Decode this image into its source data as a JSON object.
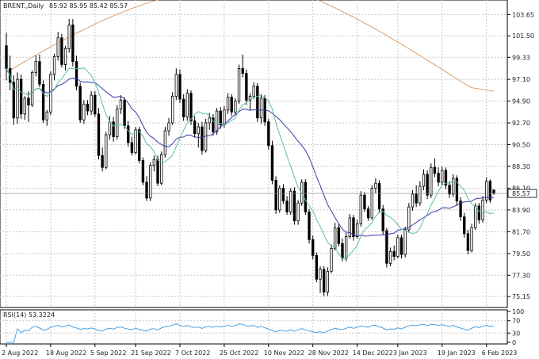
{
  "chart_data": {
    "type": "candlestick",
    "title": "BRENT.,Daily",
    "ohlc_label": "85.92 85.95 85.42 85.57",
    "last_price": "85.57",
    "y_ticks": [
      "103.65",
      "101.50",
      "99.33",
      "97.10",
      "94.90",
      "92.70",
      "90.50",
      "88.30",
      "86.10",
      "83.90",
      "81.70",
      "79.50",
      "77.30",
      "75.15"
    ],
    "x_ticks": [
      "2 Aug 2022",
      "18 Aug 2022",
      "5 Sep 2022",
      "21 Sep 2022",
      "7 Oct 2022",
      "25 Oct 2022",
      "10 Nov 2022",
      "28 Nov 2022",
      "14 Dec 2022",
      "3 Jan 2023",
      "19 Jan 2023",
      "6 Feb 2023"
    ],
    "ylim": [
      74.2,
      104.8
    ],
    "grid": true,
    "candles": [
      [
        100.5,
        101.8,
        97.0,
        98.2
      ],
      [
        98.2,
        99.5,
        96.0,
        96.8
      ],
      [
        96.8,
        97.5,
        92.5,
        93.2
      ],
      [
        93.2,
        97.8,
        92.6,
        97.1
      ],
      [
        97.1,
        97.6,
        93.1,
        93.6
      ],
      [
        93.6,
        95.4,
        93.0,
        95.2
      ],
      [
        95.2,
        95.9,
        92.8,
        94.5
      ],
      [
        94.5,
        98.0,
        94.3,
        97.8
      ],
      [
        97.8,
        99.5,
        97.4,
        98.9
      ],
      [
        98.9,
        99.6,
        96.3,
        96.6
      ],
      [
        96.6,
        97.0,
        92.7,
        93.0
      ],
      [
        93.0,
        94.0,
        92.4,
        93.8
      ],
      [
        93.8,
        97.9,
        93.5,
        97.6
      ],
      [
        97.6,
        99.7,
        97.0,
        99.4
      ],
      [
        99.4,
        101.9,
        99.0,
        101.3
      ],
      [
        101.3,
        101.7,
        98.3,
        98.6
      ],
      [
        98.6,
        100.5,
        98.0,
        100.2
      ],
      [
        100.2,
        103.2,
        99.8,
        102.6
      ],
      [
        102.6,
        103.2,
        98.4,
        98.9
      ],
      [
        98.9,
        99.5,
        96.0,
        96.4
      ],
      [
        96.4,
        96.8,
        92.7,
        93.0
      ],
      [
        93.0,
        95.0,
        92.6,
        94.6
      ],
      [
        94.6,
        95.0,
        93.5,
        93.9
      ],
      [
        93.9,
        95.9,
        93.5,
        95.5
      ],
      [
        95.5,
        95.9,
        93.3,
        93.6
      ],
      [
        93.6,
        94.2,
        89.0,
        89.4
      ],
      [
        89.4,
        90.2,
        87.8,
        88.2
      ],
      [
        88.2,
        91.8,
        88.0,
        91.5
      ],
      [
        91.5,
        93.4,
        91.0,
        92.8
      ],
      [
        92.8,
        93.3,
        90.8,
        91.3
      ],
      [
        91.3,
        94.5,
        91.0,
        94.1
      ],
      [
        94.1,
        95.5,
        93.6,
        95.0
      ],
      [
        95.0,
        95.3,
        92.1,
        92.4
      ],
      [
        92.4,
        92.9,
        90.3,
        90.7
      ],
      [
        90.7,
        91.3,
        89.4,
        89.7
      ],
      [
        89.7,
        92.3,
        89.5,
        92.0
      ],
      [
        92.0,
        92.3,
        88.6,
        88.9
      ],
      [
        88.9,
        89.2,
        86.4,
        86.7
      ],
      [
        86.7,
        87.3,
        84.8,
        85.1
      ],
      [
        85.1,
        88.7,
        84.8,
        88.4
      ],
      [
        88.4,
        89.4,
        87.8,
        89.0
      ],
      [
        89.0,
        89.4,
        86.3,
        86.6
      ],
      [
        86.6,
        89.8,
        86.4,
        89.5
      ],
      [
        89.5,
        92.3,
        89.2,
        91.9
      ],
      [
        91.9,
        93.2,
        91.4,
        92.7
      ],
      [
        92.7,
        95.8,
        92.5,
        95.4
      ],
      [
        95.4,
        98.2,
        95.0,
        97.6
      ],
      [
        97.6,
        98.1,
        94.7,
        95.1
      ],
      [
        95.1,
        95.6,
        92.9,
        93.3
      ],
      [
        93.3,
        96.1,
        92.9,
        95.7
      ],
      [
        95.7,
        96.0,
        92.5,
        92.9
      ],
      [
        92.9,
        93.4,
        91.2,
        91.6
      ],
      [
        91.6,
        92.7,
        90.2,
        92.3
      ],
      [
        92.3,
        92.8,
        89.5,
        89.9
      ],
      [
        89.9,
        93.1,
        89.7,
        92.7
      ],
      [
        92.7,
        93.7,
        92.0,
        93.2
      ],
      [
        93.2,
        93.6,
        91.4,
        91.8
      ],
      [
        91.8,
        94.2,
        91.5,
        93.9
      ],
      [
        93.9,
        94.3,
        92.1,
        92.5
      ],
      [
        92.5,
        94.4,
        92.2,
        94.0
      ],
      [
        94.0,
        95.7,
        93.6,
        95.3
      ],
      [
        95.3,
        95.6,
        93.4,
        93.8
      ],
      [
        93.8,
        95.2,
        93.5,
        94.9
      ],
      [
        94.9,
        98.6,
        94.6,
        98.2
      ],
      [
        98.2,
        99.6,
        97.3,
        97.7
      ],
      [
        97.7,
        98.1,
        94.5,
        95.0
      ],
      [
        95.0,
        95.7,
        94.0,
        95.4
      ],
      [
        95.4,
        96.8,
        95.1,
        96.4
      ],
      [
        96.4,
        96.7,
        92.8,
        93.2
      ],
      [
        93.2,
        95.6,
        92.6,
        95.2
      ],
      [
        95.2,
        95.5,
        92.4,
        92.8
      ],
      [
        92.8,
        93.1,
        90.0,
        90.4
      ],
      [
        90.4,
        90.9,
        86.5,
        86.9
      ],
      [
        86.9,
        87.3,
        83.5,
        83.9
      ],
      [
        83.9,
        86.4,
        83.6,
        86.1
      ],
      [
        86.1,
        86.5,
        84.5,
        84.8
      ],
      [
        84.8,
        85.3,
        83.4,
        83.7
      ],
      [
        83.7,
        86.1,
        83.4,
        85.8
      ],
      [
        85.8,
        86.2,
        82.4,
        82.8
      ],
      [
        82.8,
        84.9,
        82.4,
        84.6
      ],
      [
        84.6,
        87.0,
        84.3,
        86.7
      ],
      [
        86.7,
        87.0,
        83.4,
        83.7
      ],
      [
        83.7,
        84.0,
        80.5,
        80.9
      ],
      [
        80.9,
        81.3,
        78.9,
        79.3
      ],
      [
        79.3,
        79.6,
        76.6,
        76.9
      ],
      [
        76.9,
        78.2,
        75.5,
        77.9
      ],
      [
        77.9,
        78.2,
        75.2,
        75.6
      ],
      [
        75.6,
        78.1,
        75.2,
        77.7
      ],
      [
        77.7,
        80.4,
        77.5,
        80.0
      ],
      [
        80.0,
        82.6,
        79.8,
        82.1
      ],
      [
        82.1,
        82.5,
        80.2,
        80.5
      ],
      [
        80.5,
        81.0,
        78.7,
        79.0
      ],
      [
        79.0,
        81.6,
        78.7,
        81.2
      ],
      [
        81.2,
        83.5,
        81.0,
        83.1
      ],
      [
        83.1,
        83.4,
        80.8,
        81.2
      ],
      [
        81.2,
        82.9,
        81.0,
        82.5
      ],
      [
        82.5,
        85.8,
        82.2,
        85.4
      ],
      [
        85.4,
        85.7,
        83.7,
        84.0
      ],
      [
        84.0,
        84.3,
        82.8,
        83.1
      ],
      [
        83.1,
        86.4,
        82.9,
        86.1
      ],
      [
        86.1,
        87.1,
        85.6,
        86.6
      ],
      [
        86.6,
        86.9,
        83.6,
        84.0
      ],
      [
        84.0,
        84.4,
        81.4,
        81.8
      ],
      [
        81.8,
        82.1,
        78.1,
        78.5
      ],
      [
        78.5,
        80.1,
        78.2,
        79.7
      ],
      [
        79.7,
        80.3,
        78.8,
        79.2
      ],
      [
        79.2,
        81.4,
        79.0,
        81.1
      ],
      [
        81.1,
        81.4,
        79.0,
        79.4
      ],
      [
        79.4,
        82.2,
        79.1,
        81.9
      ],
      [
        81.9,
        84.6,
        81.6,
        84.2
      ],
      [
        84.2,
        85.9,
        83.8,
        85.5
      ],
      [
        85.5,
        86.4,
        84.2,
        84.6
      ],
      [
        84.6,
        86.8,
        84.3,
        86.3
      ],
      [
        86.3,
        88.0,
        85.9,
        87.5
      ],
      [
        87.5,
        87.9,
        85.0,
        85.4
      ],
      [
        85.4,
        88.6,
        85.1,
        88.2
      ],
      [
        88.2,
        89.1,
        87.2,
        87.6
      ],
      [
        87.6,
        88.2,
        86.3,
        86.7
      ],
      [
        86.7,
        88.3,
        86.4,
        87.9
      ],
      [
        87.9,
        88.2,
        86.0,
        86.4
      ],
      [
        86.4,
        86.8,
        85.1,
        85.5
      ],
      [
        85.5,
        87.5,
        85.2,
        87.1
      ],
      [
        87.1,
        87.4,
        84.4,
        84.8
      ],
      [
        84.8,
        85.2,
        82.8,
        83.2
      ],
      [
        83.2,
        83.6,
        81.1,
        81.5
      ],
      [
        81.5,
        81.9,
        79.4,
        79.8
      ],
      [
        79.8,
        82.5,
        79.6,
        82.1
      ],
      [
        82.1,
        84.6,
        81.9,
        84.3
      ],
      [
        84.3,
        84.6,
        82.5,
        82.9
      ],
      [
        82.9,
        85.3,
        82.6,
        84.9
      ],
      [
        84.9,
        87.2,
        84.6,
        86.8
      ],
      [
        86.8,
        87.0,
        84.6,
        84.9
      ],
      [
        85.92,
        85.95,
        85.42,
        85.57
      ]
    ],
    "ma_short_final": 84.1,
    "ma_long_final": 95.9,
    "rsi": {
      "label": "RSI(14) 53.3224",
      "levels": [
        "70",
        "30"
      ],
      "ylim": [
        0,
        100
      ]
    }
  }
}
